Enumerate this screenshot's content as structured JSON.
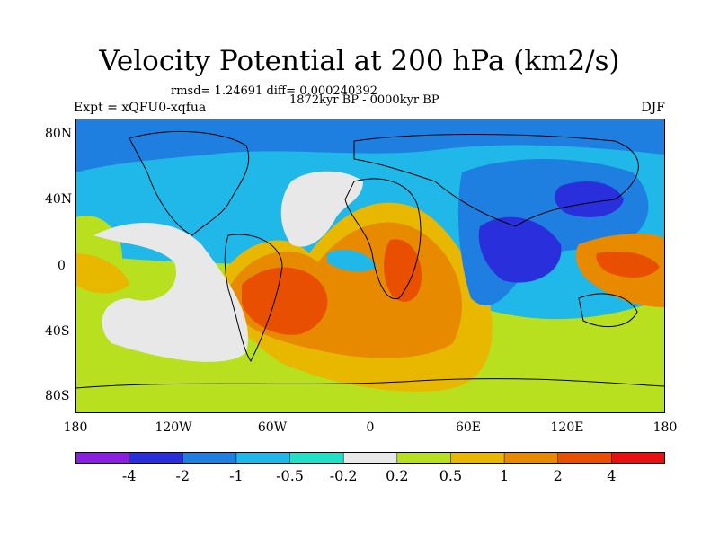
{
  "title": "Velocity Potential at 200 hPa (km2/s)",
  "stats_line": "rmsd= 1.24691 diff= 0.000240392",
  "period": "1872kyr BP - 0000kyr BP",
  "experiment": "Expt = xQFU0-xqfua",
  "season": "DJF",
  "map": {
    "projection": "cylindrical equidistant",
    "lon_range": [
      -180,
      180
    ],
    "lat_range": [
      -90,
      90
    ],
    "lat_ticks": [
      {
        "value": 80,
        "label": "80N"
      },
      {
        "value": 40,
        "label": "40N"
      },
      {
        "value": 0,
        "label": "0"
      },
      {
        "value": -40,
        "label": "40S"
      },
      {
        "value": -80,
        "label": "80S"
      }
    ],
    "lon_ticks": [
      {
        "value": -180,
        "label": "180"
      },
      {
        "value": -120,
        "label": "120W"
      },
      {
        "value": -60,
        "label": "60W"
      },
      {
        "value": 0,
        "label": "0"
      },
      {
        "value": 60,
        "label": "60E"
      },
      {
        "value": 120,
        "label": "120E"
      },
      {
        "value": 180,
        "label": "180"
      }
    ]
  },
  "colorbar": {
    "colors": [
      "#8a1fe0",
      "#2a2fdc",
      "#1f7fe0",
      "#1fb8e8",
      "#22e0c8",
      "#e8e8e8",
      "#b8e01f",
      "#e8b800",
      "#e88a00",
      "#e85000",
      "#e81010"
    ],
    "labels": [
      "-4",
      "-2",
      "-1",
      "-0.5",
      "-0.2",
      "0.2",
      "0.5",
      "1",
      "2",
      "4"
    ]
  }
}
